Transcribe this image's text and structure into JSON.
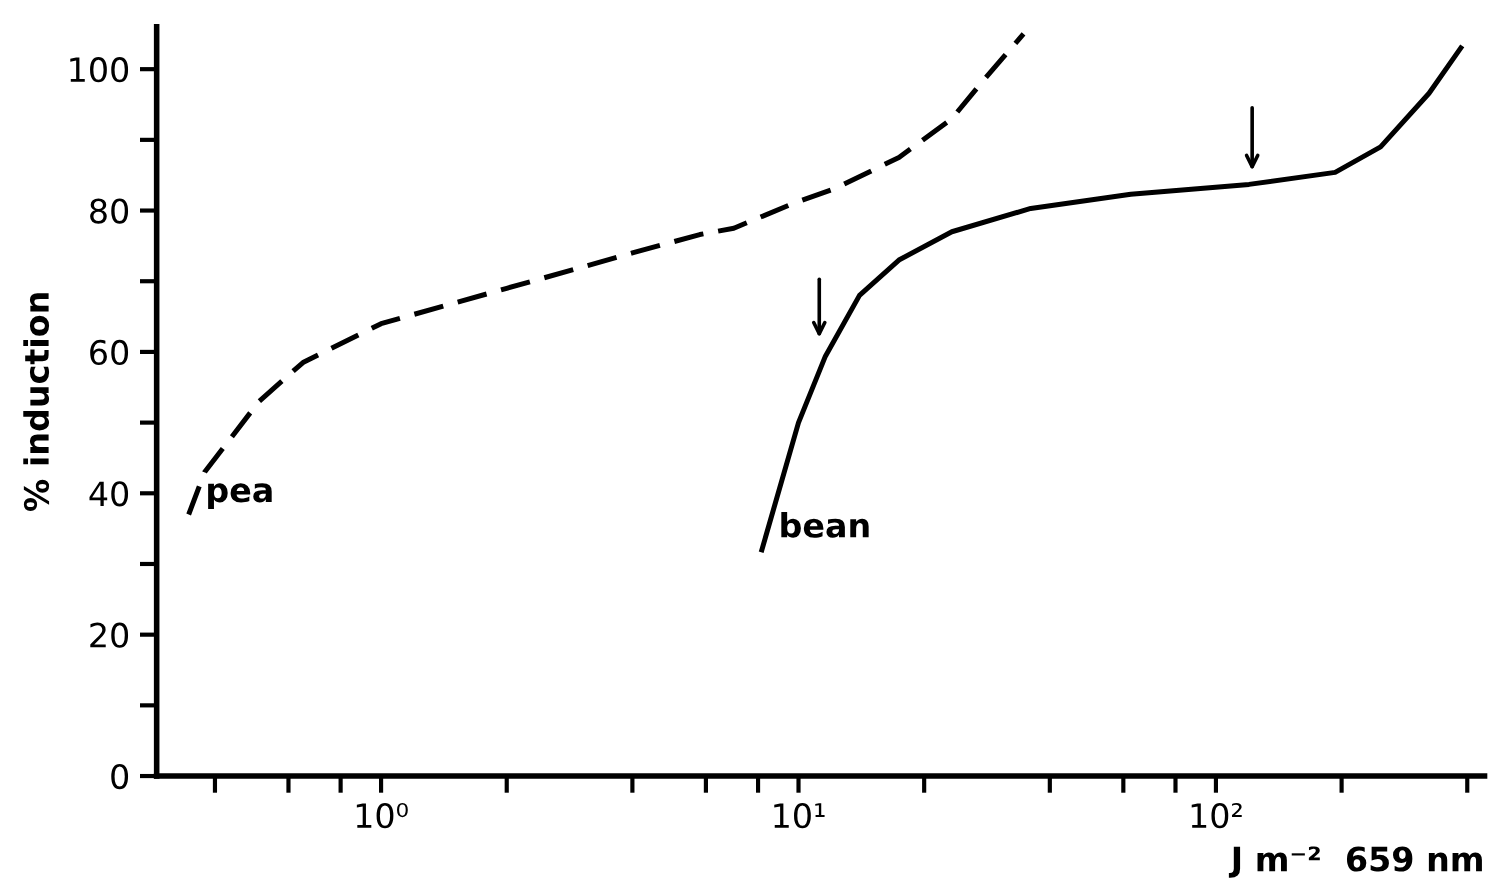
{
  "chart_data": {
    "type": "line",
    "ylabel": "% induction",
    "xlabel": "J m⁻²  659 nm",
    "log": "x",
    "xlim": [
      0.29,
      440
    ],
    "ylim": [
      0,
      106
    ],
    "xticks": [
      {
        "value": 0.4,
        "label": null
      },
      {
        "value": 0.6,
        "label": null
      },
      {
        "value": 0.8,
        "label": null
      },
      {
        "value": 1,
        "label": "10⁰"
      },
      {
        "value": 2,
        "label": null
      },
      {
        "value": 4,
        "label": null
      },
      {
        "value": 6,
        "label": null
      },
      {
        "value": 8,
        "label": null
      },
      {
        "value": 10,
        "label": "10¹"
      },
      {
        "value": 20,
        "label": null
      },
      {
        "value": 40,
        "label": null
      },
      {
        "value": 60,
        "label": null
      },
      {
        "value": 80,
        "label": null
      },
      {
        "value": 100,
        "label": "10²"
      },
      {
        "value": 200,
        "label": null
      },
      {
        "value": 400,
        "label": null
      }
    ],
    "yticks": [
      0,
      {
        "value": 10,
        "label": null
      },
      20,
      {
        "value": 30,
        "label": null
      },
      40,
      {
        "value": 50,
        "label": null
      },
      60,
      {
        "value": 70,
        "label": null
      },
      80,
      {
        "value": 90,
        "label": null
      },
      100
    ],
    "grid": false,
    "legend": false,
    "marker": "none",
    "series": [
      {
        "name": "pea",
        "color": "#000000",
        "line_style": "dashed",
        "x": [
          0.346,
          0.378,
          0.51,
          0.65,
          1.0,
          2.0,
          4.0,
          5.8,
          7.0,
          9.7,
          12.1,
          17.4,
          23.3,
          27.8,
          34.6
        ],
        "values": [
          37,
          43,
          53,
          58.5,
          64,
          69,
          74,
          76.6,
          77.5,
          81,
          83,
          87.5,
          93,
          98.5,
          105
        ]
      },
      {
        "name": "bean",
        "color": "#000000",
        "line_style": "solid",
        "x": [
          8.17,
          10,
          11.6,
          14,
          17.4,
          23.3,
          36,
          62.5,
          120,
          193,
          248,
          324,
          386
        ],
        "values": [
          32,
          50,
          59.4,
          68,
          73,
          77,
          80.3,
          82.3,
          83.7,
          85.4,
          89,
          96.6,
          103
        ]
      }
    ]
  }
}
